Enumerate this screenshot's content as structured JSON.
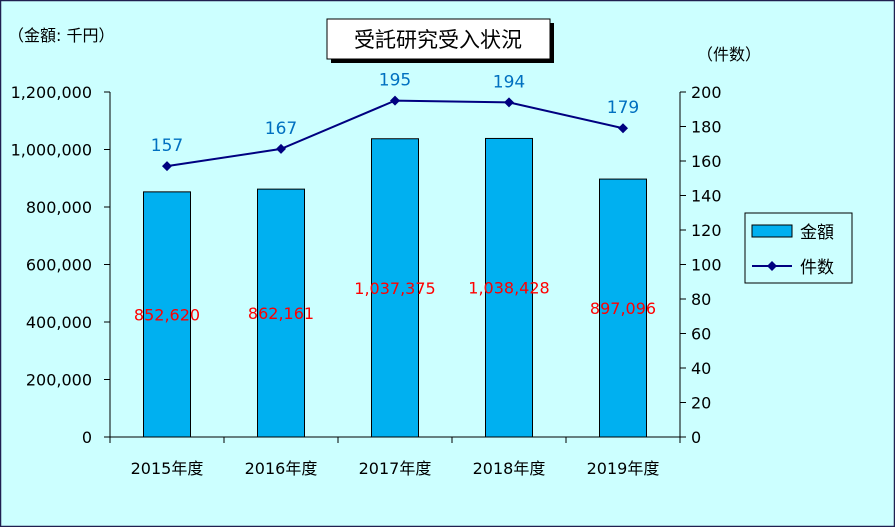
{
  "chart_data": {
    "type": "bar",
    "title": "受託研究受入状況",
    "categories": [
      "2015年度",
      "2016年度",
      "2017年度",
      "2018年度",
      "2019年度"
    ],
    "ylabel": "（金額: 千円）",
    "y2label": "（件数）",
    "ylim": [
      0,
      1200000
    ],
    "y2lim": [
      0,
      200
    ],
    "y_ticks": [
      0,
      200000,
      400000,
      600000,
      800000,
      1000000,
      1200000
    ],
    "y_tick_labels": [
      "0",
      "200,000",
      "400,000",
      "600,000",
      "800,000",
      "1,000,000",
      "1,200,000"
    ],
    "y2_ticks": [
      0,
      20,
      40,
      60,
      80,
      100,
      120,
      140,
      160,
      180,
      200
    ],
    "y2_tick_labels": [
      "0",
      "20",
      "40",
      "60",
      "80",
      "100",
      "120",
      "140",
      "160",
      "180",
      "200"
    ],
    "grid": false,
    "legend_position": "right",
    "series": [
      {
        "name": "金額",
        "type": "bar",
        "axis": "y",
        "values": [
          852620,
          862161,
          1037375,
          1038428,
          897096
        ],
        "labels": [
          "852,620",
          "862,161",
          "1,037,375",
          "1,038,428",
          "897,096"
        ]
      },
      {
        "name": "件数",
        "type": "line",
        "axis": "y2",
        "values": [
          157,
          167,
          195,
          194,
          179
        ],
        "labels": [
          "157",
          "167",
          "195",
          "194",
          "179"
        ]
      }
    ]
  },
  "colors": {
    "background": "#CCFFFF",
    "bar_fill": "#00B0F0",
    "bar_stroke": "#000000",
    "bar_label": "#FF0000",
    "line": "#000080",
    "line_label": "#0070C0",
    "frame": "#202050"
  }
}
